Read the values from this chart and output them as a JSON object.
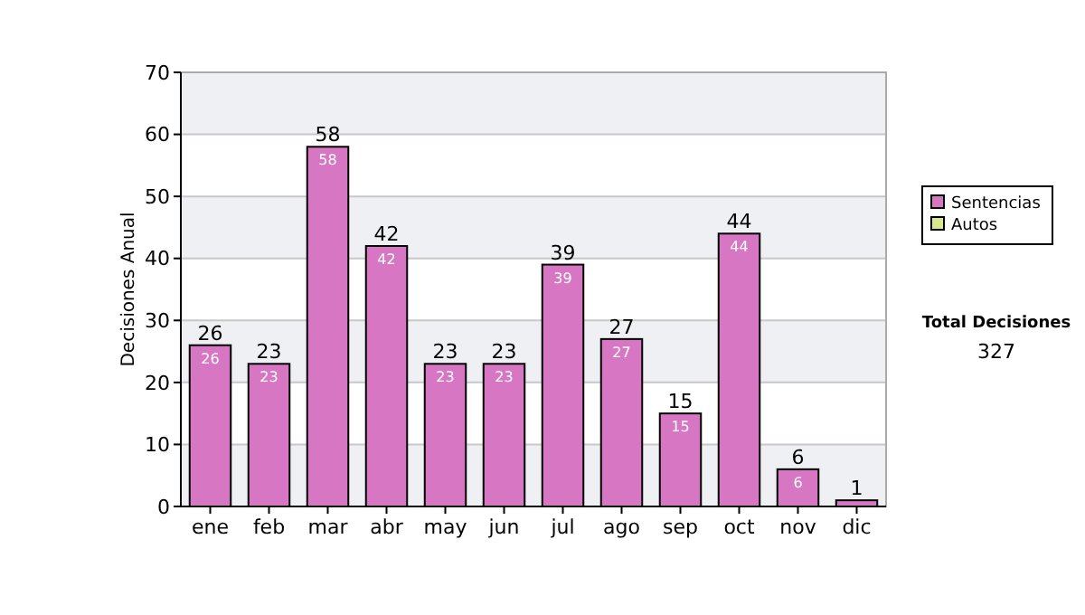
{
  "chart_data": {
    "type": "bar",
    "stacked": true,
    "ylabel": "Decisiones Anual",
    "categories": [
      "ene",
      "feb",
      "mar",
      "abr",
      "may",
      "jun",
      "jul",
      "ago",
      "sep",
      "oct",
      "nov",
      "dic"
    ],
    "series": [
      {
        "name": "Sentencias",
        "color": "#d777c4",
        "values": [
          26,
          23,
          58,
          42,
          23,
          23,
          39,
          27,
          15,
          44,
          6,
          1
        ],
        "value_labels": [
          "26",
          "23",
          "58",
          "42",
          "23",
          "23",
          "39",
          "27",
          "15",
          "44",
          "6",
          null
        ]
      },
      {
        "name": "Autos",
        "color": "#dde88a",
        "values": [
          0,
          0,
          0,
          0,
          0,
          0,
          0,
          0,
          0,
          0,
          0,
          0
        ]
      }
    ],
    "totals": [
      "26",
      "23",
      "58",
      "42",
      "23",
      "23",
      "39",
      "27",
      "15",
      "44",
      "6",
      "1"
    ],
    "ylim": [
      0,
      70
    ],
    "yticks": [
      0,
      10,
      20,
      30,
      40,
      50,
      60,
      70
    ],
    "grid": "y",
    "legend": "right",
    "annotations": [
      "Total Decisiones",
      "327"
    ]
  }
}
